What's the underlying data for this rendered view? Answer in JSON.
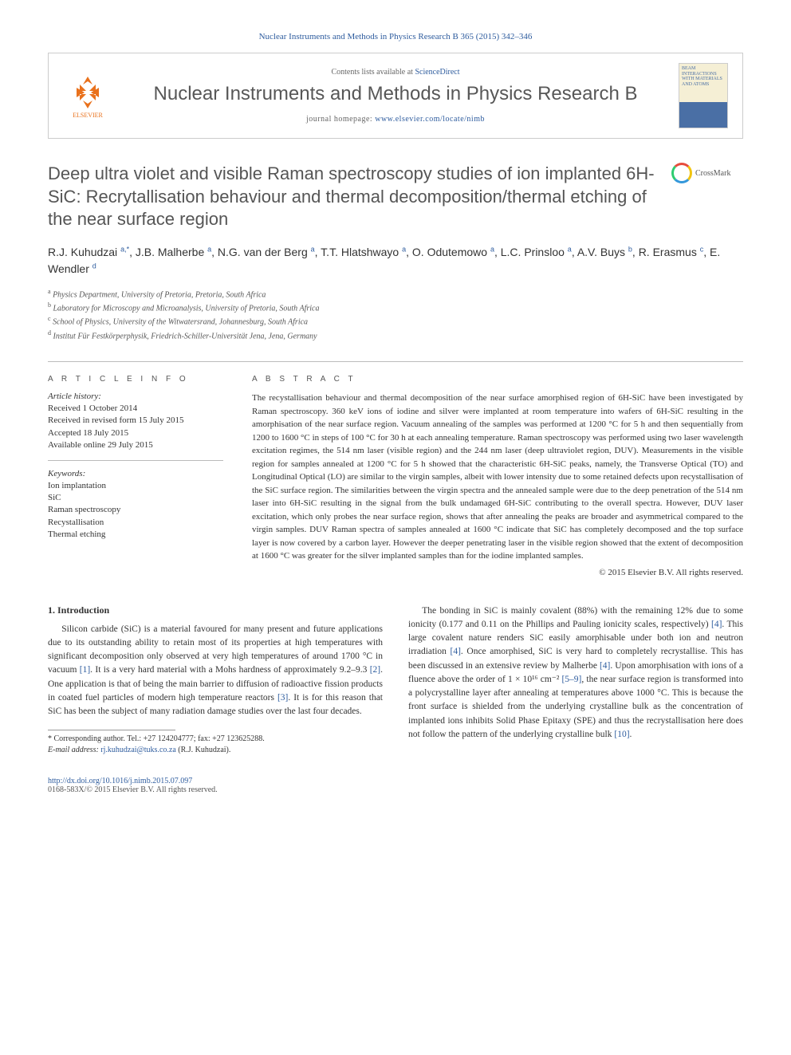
{
  "journal_ref": "Nuclear Instruments and Methods in Physics Research B 365 (2015) 342–346",
  "header": {
    "contents_prefix": "Contents lists available at ",
    "contents_link": "ScienceDirect",
    "journal_name": "Nuclear Instruments and Methods in Physics Research B",
    "homepage_prefix": "journal homepage: ",
    "homepage_url": "www.elsevier.com/locate/nimb",
    "elsevier_label": "ELSEVIER",
    "cover_text": "BEAM INTERACTIONS WITH MATERIALS AND ATOMS"
  },
  "title": "Deep ultra violet and visible Raman spectroscopy studies of ion implanted 6H-SiC: Recrytallisation behaviour and thermal decomposition/thermal etching of the near surface region",
  "crossmark_label": "CrossMark",
  "authors_html": "R.J. Kuhudzai <sup>a,*</sup>, J.B. Malherbe <sup>a</sup>, N.G. van der Berg <sup>a</sup>, T.T. Hlatshwayo <sup>a</sup>, O. Odutemowo <sup>a</sup>, L.C. Prinsloo <sup>a</sup>, A.V. Buys <sup>b</sup>, R. Erasmus <sup>c</sup>, E. Wendler <sup>d</sup>",
  "affiliations": [
    {
      "sup": "a",
      "text": "Physics Department, University of Pretoria, Pretoria, South Africa"
    },
    {
      "sup": "b",
      "text": "Laboratory for Microscopy and Microanalysis, University of Pretoria, South Africa"
    },
    {
      "sup": "c",
      "text": "School of Physics, University of the Witwatersrand, Johannesburg, South Africa"
    },
    {
      "sup": "d",
      "text": "Institut Für Festkörperphysik, Friedrich-Schiller-Universität Jena, Jena, Germany"
    }
  ],
  "info_label": "A R T I C L E   I N F O",
  "abstract_label": "A B S T R A C T",
  "history": {
    "label": "Article history:",
    "items": [
      "Received 1 October 2014",
      "Received in revised form 15 July 2015",
      "Accepted 18 July 2015",
      "Available online 29 July 2015"
    ]
  },
  "keywords": {
    "label": "Keywords:",
    "items": [
      "Ion implantation",
      "SiC",
      "Raman spectroscopy",
      "Recystallisation",
      "Thermal etching"
    ]
  },
  "abstract": "The recystallisation behaviour and thermal decomposition of the near surface amorphised region of 6H-SiC have been investigated by Raman spectroscopy. 360 keV ions of iodine and silver were implanted at room temperature into wafers of 6H-SiC resulting in the amorphisation of the near surface region. Vacuum annealing of the samples was performed at 1200 °C for 5 h and then sequentially from 1200 to 1600 °C in steps of 100 °C for 30 h at each annealing temperature. Raman spectroscopy was performed using two laser wavelength excitation regimes, the 514 nm laser (visible region) and the 244 nm laser (deep ultraviolet region, DUV). Measurements in the visible region for samples annealed at 1200 °C for 5 h showed that the characteristic 6H-SiC peaks, namely, the Transverse Optical (TO) and Longitudinal Optical (LO) are similar to the virgin samples, albeit with lower intensity due to some retained defects upon recystallisation of the SiC surface region. The similarities between the virgin spectra and the annealed sample were due to the deep penetration of the 514 nm laser into 6H-SiC resulting in the signal from the bulk undamaged 6H-SiC contributing to the overall spectra. However, DUV laser excitation, which only probes the near surface region, shows that after annealing the peaks are broader and asymmetrical compared to the virgin samples. DUV Raman spectra of samples annealed at 1600 °C indicate that SiC has completely decomposed and the top surface layer is now covered by a carbon layer. However the deeper penetrating laser in the visible region showed that the extent of decomposition at 1600 °C was greater for the silver implanted samples than for the iodine implanted samples.",
  "copyright": "© 2015 Elsevier B.V. All rights reserved.",
  "section1_title": "1. Introduction",
  "para1": "Silicon carbide (SiC) is a material favoured for many present and future applications due to its outstanding ability to retain most of its properties at high temperatures with significant decomposition only observed at very high temperatures of around 1700 °C in vacuum [1]. It is a very hard material with a Mohs hardness of approximately 9.2–9.3 [2]. One application is that of being the main barrier to diffusion of radioactive fission products in coated fuel particles of modern high temperature reactors [3]. It is for this reason that SiC has been the subject of many radiation damage studies over the last four decades.",
  "para2": "The bonding in SiC is mainly covalent (88%) with the remaining 12% due to some ionicity (0.177 and 0.11 on the Phillips and Pauling ionicity scales, respectively) [4]. This large covalent nature renders SiC easily amorphisable under both ion and neutron irradiation [4]. Once amorphised, SiC is very hard to completely recrystallise. This has been discussed in an extensive review by Malherbe [4]. Upon amorphisation with ions of a fluence above the order of 1 × 10¹⁶ cm⁻² [5–9], the near surface region is transformed into a polycrystalline layer after annealing at temperatures above 1000 °C. This is because the front surface is shielded from the underlying crystalline bulk as the concentration of implanted ions inhibits Solid Phase Epitaxy (SPE) and thus the recrystallisation here does not follow the pattern of the underlying crystalline bulk [10].",
  "footnote": {
    "corresponding": "* Corresponding author. Tel.: +27 124204777; fax: +27 123625288.",
    "email_label": "E-mail address:",
    "email": "rj.kuhudzai@tuks.co.za",
    "email_name": "(R.J. Kuhudzai)."
  },
  "footer": {
    "doi": "http://dx.doi.org/10.1016/j.nimb.2015.07.097",
    "issn_line": "0168-583X/© 2015 Elsevier B.V. All rights reserved."
  },
  "colors": {
    "link": "#2e5c9e",
    "orange": "#e9711c",
    "text": "#333333",
    "muted": "#555555",
    "border": "#bbbbbb"
  },
  "typography": {
    "body_pt": 11.5,
    "small_pt": 11,
    "tiny_pt": 10,
    "title_pt": 22,
    "journal_name_pt": 24
  }
}
